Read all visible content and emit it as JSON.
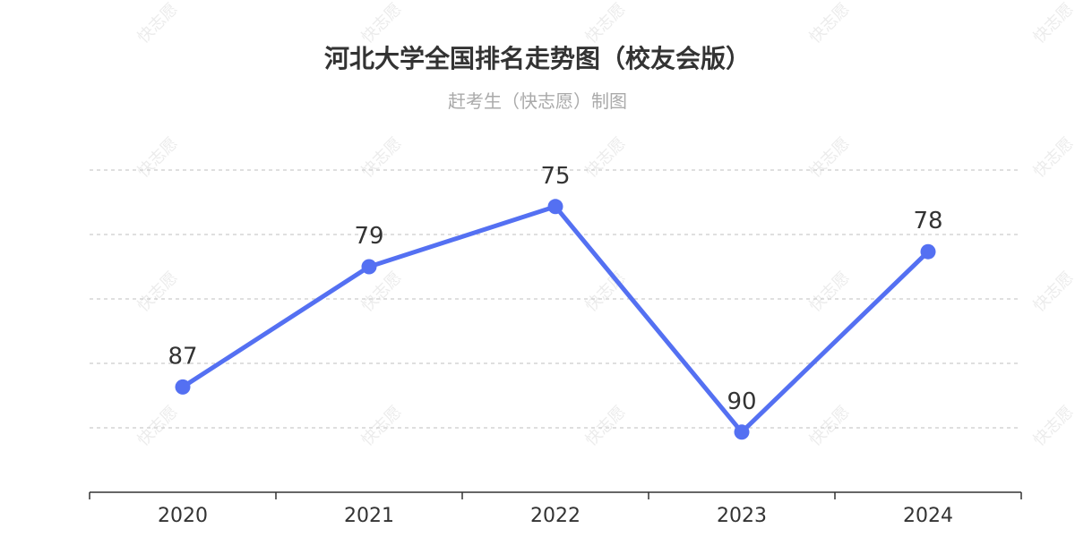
{
  "watermark_text": "快志愿",
  "chart_data": {
    "type": "line",
    "title": "河北大学全国排名走势图（校友会版）",
    "subtitle": "赶考生（快志愿）制图",
    "categories": [
      "2020",
      "2021",
      "2022",
      "2023",
      "2024"
    ],
    "series": [
      {
        "values": [
          87,
          79,
          75,
          90,
          78
        ],
        "color": "#5470f2"
      }
    ],
    "y_axis": {
      "inverse": true,
      "range": [
        69,
        94
      ],
      "tick_labels_visible": false
    },
    "grid": {
      "horizontal": true,
      "style": "dashed"
    },
    "data_labels": true
  }
}
